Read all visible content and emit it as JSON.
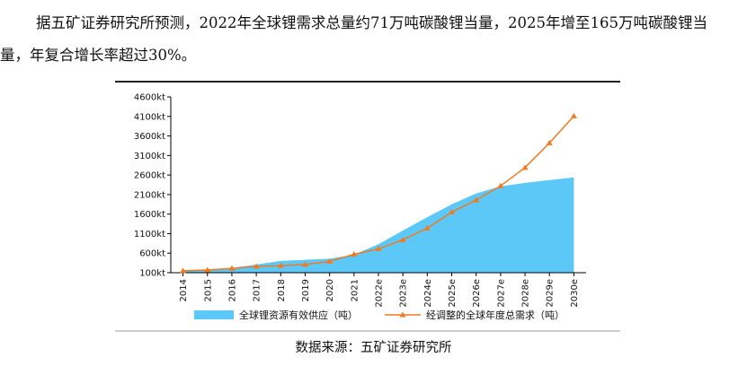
{
  "paragraph": {
    "line1": "据五矿证券研究所预测，2022年全球锂需求总量约71万吨碳酸锂当量，2025年增至165万吨碳酸锂当",
    "line2": "量，年复合增长率超过30%。"
  },
  "caption": "数据来源：五矿证券研究所",
  "colors": {
    "area": "#5bc8f7",
    "line": "#f07a22",
    "axis": "#000000"
  },
  "chart_data": {
    "type": "area",
    "title": "",
    "xlabel": "",
    "ylabel": "",
    "ylim": [
      100,
      4600
    ],
    "y_ticks": [
      100,
      600,
      1100,
      1600,
      2100,
      2600,
      3100,
      3600,
      4100,
      4600
    ],
    "y_tick_labels": [
      "100kt",
      "600kt",
      "1100kt",
      "1600kt",
      "2100kt",
      "2600kt",
      "3100kt",
      "3600kt",
      "4100kt",
      "4600kt"
    ],
    "categories": [
      "2014",
      "2015",
      "2016",
      "2017",
      "2018",
      "2019",
      "2020",
      "2021",
      "2022e",
      "2023e",
      "2024e",
      "2025e",
      "2026e",
      "2027e",
      "2028e",
      "2029e",
      "2030e"
    ],
    "series": [
      {
        "name": "全球锂资源有效供应（吨）",
        "kind": "area",
        "values": [
          160,
          190,
          220,
          310,
          400,
          430,
          460,
          560,
          830,
          1180,
          1520,
          1850,
          2130,
          2310,
          2400,
          2470,
          2540
        ]
      },
      {
        "name": "经调整的全球年度总需求（吨）",
        "kind": "line",
        "values": [
          150,
          170,
          210,
          260,
          280,
          310,
          390,
          570,
          710,
          940,
          1240,
          1650,
          1960,
          2320,
          2790,
          3420,
          4110
        ]
      }
    ],
    "legend_position": "bottom"
  }
}
